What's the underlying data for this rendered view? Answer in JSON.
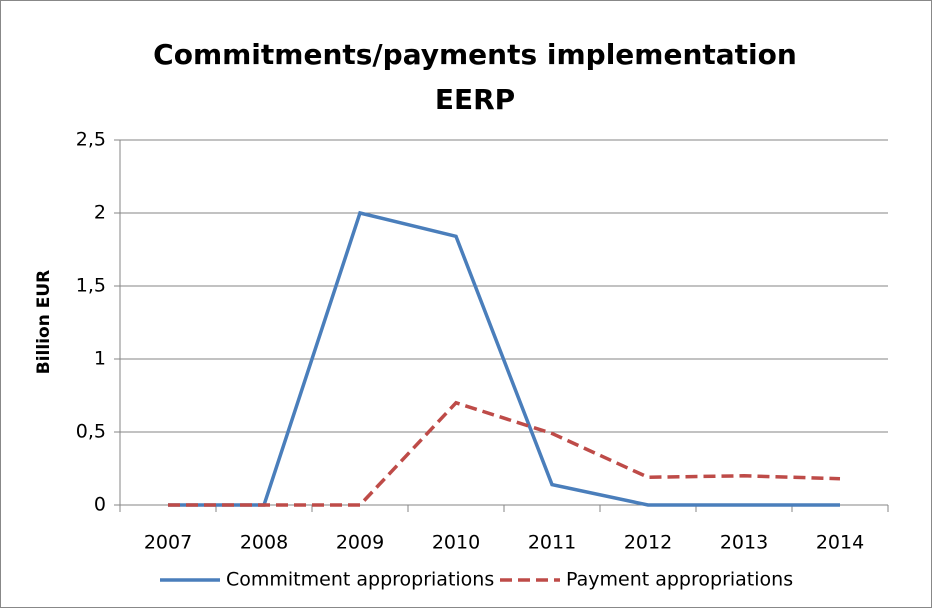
{
  "chart_data": {
    "type": "line",
    "title": [
      "Commitments/payments implementation",
      "EERP"
    ],
    "y_label": "Billion EUR",
    "categories": [
      "2007",
      "2008",
      "2009",
      "2010",
      "2011",
      "2012",
      "2013",
      "2014"
    ],
    "series": [
      {
        "name": "Commitment appropriations",
        "color": "#4a7ebb",
        "dashed": false,
        "values": [
          0,
          0,
          2.0,
          1.84,
          0.14,
          0,
          0,
          0
        ]
      },
      {
        "name": "Payment appropriations",
        "color": "#be4b48",
        "dashed": true,
        "values": [
          0,
          0,
          0,
          0.7,
          0.49,
          0.19,
          0.2,
          0.18
        ]
      }
    ],
    "ylim": [
      0,
      2.5
    ],
    "yticks": [
      0,
      {
        "value": 0.5,
        "label": "0,5"
      },
      1,
      {
        "value": 1.5,
        "label": "1,5"
      },
      2,
      {
        "value": 2.5,
        "label": "2,5"
      }
    ],
    "grid": true,
    "legend": "bottom"
  }
}
